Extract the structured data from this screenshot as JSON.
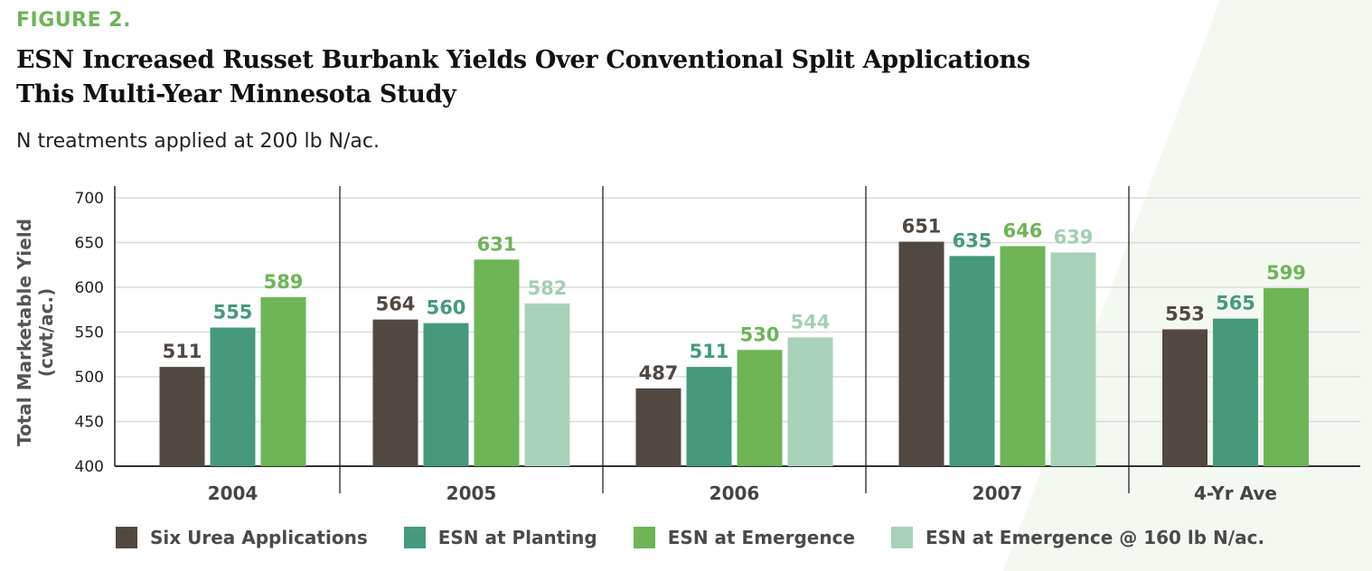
{
  "figure_label": "FIGURE 2.",
  "title_line1": "ESN Increased Russet Burbank Yields Over Conventional Split Applications",
  "title_line2": "This Multi-Year Minnesota Study",
  "subtitle": "N treatments applied at 200 lb N/ac.",
  "colors": {
    "six_urea": "#524842",
    "esn_planting": "#459a7b",
    "esn_emergence": "#6db556",
    "esn_emergence_160": "#a8d2b8",
    "label_160": "#a3cfb4",
    "background_accent": "#f3f8f0"
  },
  "chart_data": {
    "type": "bar",
    "title": "ESN Increased Russet Burbank Yields Over Conventional Split Applications This Multi-Year Minnesota Study",
    "xlabel": "",
    "ylabel": "Total Marketable Yield (cwt/ac.)",
    "ylabel_line1": "Total Marketable Yield",
    "ylabel_line2": "(cwt/ac.)",
    "ylim": [
      400,
      700
    ],
    "yticks": [
      "400",
      "450",
      "500",
      "550",
      "600",
      "650",
      "700"
    ],
    "grid": true,
    "legend_position": "bottom",
    "categories": [
      "2004",
      "2005",
      "2006",
      "2007",
      "4-Yr Ave"
    ],
    "series": [
      {
        "name": "Six Urea Applications",
        "values": [
          511,
          564,
          487,
          651,
          553
        ]
      },
      {
        "name": "ESN at Planting",
        "values": [
          555,
          560,
          511,
          635,
          565
        ]
      },
      {
        "name": "ESN at Emergence",
        "values": [
          589,
          631,
          530,
          646,
          599
        ]
      },
      {
        "name": "ESN at Emergence @ 160 lb N/ac.",
        "values": [
          null,
          582,
          544,
          639,
          null
        ]
      }
    ]
  }
}
